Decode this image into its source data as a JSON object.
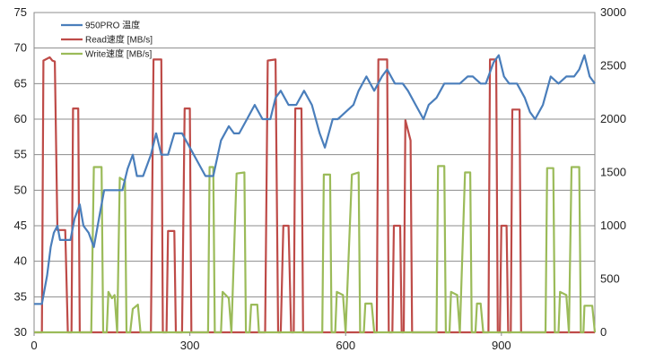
{
  "chart_data": {
    "type": "line",
    "title": "",
    "xlabel": "",
    "ylabel": "",
    "y2label": "",
    "xlim": [
      0,
      1080
    ],
    "xticks": [
      0,
      300,
      600,
      900
    ],
    "ylim": [
      30,
      75
    ],
    "yticks": [
      30,
      35,
      40,
      45,
      50,
      55,
      60,
      65,
      70,
      75
    ],
    "y2lim": [
      0,
      3000
    ],
    "y2ticks": [
      0,
      500,
      1000,
      1500,
      2000,
      2500,
      3000
    ],
    "grid": "horizontal",
    "legend": "top-left",
    "series": [
      {
        "name": "950PRO 温度",
        "axis": "left",
        "color": "#4a7ebb",
        "points": [
          [
            0,
            34
          ],
          [
            15,
            34
          ],
          [
            25,
            38
          ],
          [
            32,
            42
          ],
          [
            38,
            44
          ],
          [
            45,
            45
          ],
          [
            50,
            43
          ],
          [
            70,
            43
          ],
          [
            78,
            46
          ],
          [
            88,
            48
          ],
          [
            95,
            45
          ],
          [
            105,
            44
          ],
          [
            115,
            42
          ],
          [
            125,
            46
          ],
          [
            135,
            50
          ],
          [
            150,
            50
          ],
          [
            170,
            50
          ],
          [
            180,
            53
          ],
          [
            190,
            55
          ],
          [
            198,
            52
          ],
          [
            210,
            52
          ],
          [
            225,
            55
          ],
          [
            235,
            58
          ],
          [
            245,
            55
          ],
          [
            258,
            55
          ],
          [
            270,
            58
          ],
          [
            285,
            58
          ],
          [
            300,
            56
          ],
          [
            315,
            54
          ],
          [
            330,
            52
          ],
          [
            345,
            52
          ],
          [
            360,
            57
          ],
          [
            375,
            59
          ],
          [
            385,
            58
          ],
          [
            395,
            58
          ],
          [
            410,
            60
          ],
          [
            425,
            62
          ],
          [
            440,
            60
          ],
          [
            455,
            60
          ],
          [
            465,
            63
          ],
          [
            475,
            64
          ],
          [
            490,
            62
          ],
          [
            505,
            62
          ],
          [
            520,
            64
          ],
          [
            535,
            62
          ],
          [
            550,
            58
          ],
          [
            560,
            56
          ],
          [
            575,
            60
          ],
          [
            585,
            60
          ],
          [
            600,
            61
          ],
          [
            615,
            62
          ],
          [
            625,
            64
          ],
          [
            640,
            66
          ],
          [
            655,
            64
          ],
          [
            670,
            66
          ],
          [
            680,
            67
          ],
          [
            695,
            65
          ],
          [
            710,
            65
          ],
          [
            720,
            64
          ],
          [
            735,
            62
          ],
          [
            750,
            60
          ],
          [
            760,
            62
          ],
          [
            775,
            63
          ],
          [
            790,
            65
          ],
          [
            805,
            65
          ],
          [
            820,
            65
          ],
          [
            835,
            66
          ],
          [
            845,
            66
          ],
          [
            860,
            65
          ],
          [
            870,
            65
          ],
          [
            885,
            68
          ],
          [
            895,
            69
          ],
          [
            905,
            66
          ],
          [
            915,
            65
          ],
          [
            930,
            65
          ],
          [
            945,
            63
          ],
          [
            955,
            61
          ],
          [
            965,
            60
          ],
          [
            980,
            62
          ],
          [
            995,
            66
          ],
          [
            1010,
            65
          ],
          [
            1025,
            66
          ],
          [
            1040,
            66
          ],
          [
            1050,
            67
          ],
          [
            1060,
            69
          ],
          [
            1070,
            66
          ],
          [
            1080,
            65
          ]
        ]
      },
      {
        "name": "Read速度 [MB/s]",
        "axis": "right",
        "color": "#be4b48",
        "points": [
          [
            0,
            0
          ],
          [
            15,
            0
          ],
          [
            18,
            2550
          ],
          [
            30,
            2580
          ],
          [
            35,
            2550
          ],
          [
            40,
            2540
          ],
          [
            45,
            960
          ],
          [
            60,
            960
          ],
          [
            65,
            0
          ],
          [
            72,
            0
          ],
          [
            75,
            2100
          ],
          [
            85,
            2100
          ],
          [
            88,
            0
          ],
          [
            225,
            0
          ],
          [
            230,
            2560
          ],
          [
            245,
            2560
          ],
          [
            248,
            0
          ],
          [
            255,
            0
          ],
          [
            258,
            950
          ],
          [
            270,
            950
          ],
          [
            273,
            0
          ],
          [
            285,
            0
          ],
          [
            290,
            2100
          ],
          [
            300,
            2100
          ],
          [
            303,
            0
          ],
          [
            445,
            0
          ],
          [
            450,
            2550
          ],
          [
            465,
            2560
          ],
          [
            470,
            0
          ],
          [
            475,
            0
          ],
          [
            480,
            1000
          ],
          [
            490,
            1000
          ],
          [
            495,
            0
          ],
          [
            500,
            0
          ],
          [
            503,
            2100
          ],
          [
            515,
            2100
          ],
          [
            518,
            0
          ],
          [
            660,
            0
          ],
          [
            663,
            2560
          ],
          [
            680,
            2560
          ],
          [
            683,
            0
          ],
          [
            690,
            0
          ],
          [
            693,
            1000
          ],
          [
            705,
            1000
          ],
          [
            708,
            0
          ],
          [
            712,
            0
          ],
          [
            715,
            1990
          ],
          [
            725,
            1800
          ],
          [
            728,
            0
          ],
          [
            875,
            0
          ],
          [
            878,
            2560
          ],
          [
            890,
            2560
          ],
          [
            893,
            0
          ],
          [
            897,
            0
          ],
          [
            900,
            1000
          ],
          [
            910,
            1000
          ],
          [
            913,
            0
          ],
          [
            918,
            0
          ],
          [
            921,
            2090
          ],
          [
            935,
            2090
          ],
          [
            938,
            0
          ],
          [
            1080,
            0
          ]
        ]
      },
      {
        "name": "Write速度 [MB/s]",
        "axis": "right",
        "color": "#9bbb59",
        "points": [
          [
            0,
            0
          ],
          [
            110,
            0
          ],
          [
            115,
            1550
          ],
          [
            130,
            1550
          ],
          [
            133,
            0
          ],
          [
            140,
            0
          ],
          [
            143,
            380
          ],
          [
            150,
            320
          ],
          [
            155,
            350
          ],
          [
            160,
            0
          ],
          [
            165,
            1450
          ],
          [
            175,
            1420
          ],
          [
            178,
            0
          ],
          [
            185,
            0
          ],
          [
            190,
            220
          ],
          [
            200,
            260
          ],
          [
            205,
            0
          ],
          [
            335,
            0
          ],
          [
            338,
            1550
          ],
          [
            345,
            1550
          ],
          [
            348,
            0
          ],
          [
            360,
            0
          ],
          [
            363,
            380
          ],
          [
            375,
            320
          ],
          [
            380,
            0
          ],
          [
            390,
            1490
          ],
          [
            405,
            1500
          ],
          [
            408,
            0
          ],
          [
            415,
            0
          ],
          [
            418,
            260
          ],
          [
            430,
            260
          ],
          [
            433,
            0
          ],
          [
            555,
            0
          ],
          [
            558,
            1480
          ],
          [
            570,
            1480
          ],
          [
            573,
            0
          ],
          [
            580,
            0
          ],
          [
            583,
            380
          ],
          [
            595,
            350
          ],
          [
            600,
            0
          ],
          [
            612,
            1480
          ],
          [
            625,
            1500
          ],
          [
            628,
            0
          ],
          [
            635,
            0
          ],
          [
            638,
            270
          ],
          [
            650,
            270
          ],
          [
            655,
            0
          ],
          [
            775,
            0
          ],
          [
            778,
            1560
          ],
          [
            790,
            1560
          ],
          [
            793,
            0
          ],
          [
            800,
            0
          ],
          [
            803,
            380
          ],
          [
            815,
            350
          ],
          [
            820,
            0
          ],
          [
            830,
            1500
          ],
          [
            840,
            1500
          ],
          [
            843,
            0
          ],
          [
            850,
            0
          ],
          [
            853,
            270
          ],
          [
            860,
            270
          ],
          [
            865,
            0
          ],
          [
            985,
            0
          ],
          [
            988,
            1540
          ],
          [
            1000,
            1540
          ],
          [
            1003,
            0
          ],
          [
            1010,
            0
          ],
          [
            1013,
            380
          ],
          [
            1025,
            350
          ],
          [
            1030,
            0
          ],
          [
            1035,
            1550
          ],
          [
            1050,
            1550
          ],
          [
            1053,
            0
          ],
          [
            1058,
            0
          ],
          [
            1060,
            250
          ],
          [
            1075,
            250
          ],
          [
            1080,
            0
          ]
        ]
      }
    ]
  }
}
